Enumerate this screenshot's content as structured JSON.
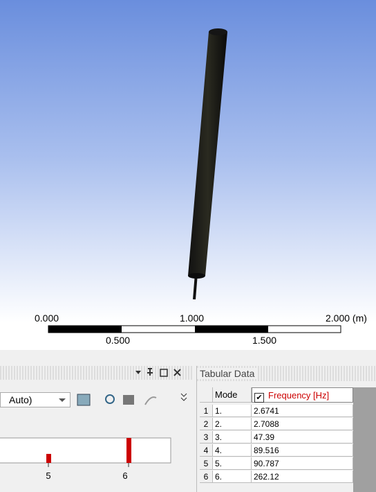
{
  "viewport": {
    "scale_bar": {
      "top_labels": [
        "0.000",
        "1.000",
        "2.000 (m)"
      ],
      "bottom_labels": [
        "0.500",
        "1.500"
      ]
    }
  },
  "graph_panel": {
    "dropdown": "Auto)",
    "x_tick_labels": [
      "5",
      "6"
    ]
  },
  "tabular_data": {
    "title": "Tabular Data",
    "columns": [
      "Mode",
      "Frequency [Hz]"
    ],
    "rows": [
      [
        1,
        "1.",
        2.6741
      ],
      [
        2,
        "2.",
        2.7088
      ],
      [
        3,
        "3.",
        47.39
      ],
      [
        4,
        "4.",
        89.516
      ],
      [
        5,
        "5.",
        90.787
      ],
      [
        6,
        "6.",
        262.12
      ]
    ]
  }
}
